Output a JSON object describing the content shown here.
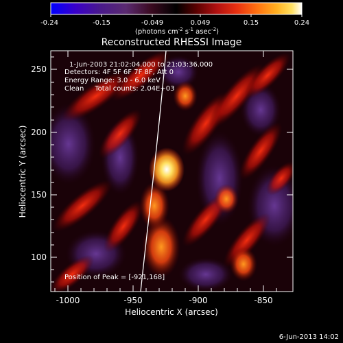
{
  "colorbar": {
    "tick_labels": [
      "-0.24",
      "-0.15",
      "-0.049",
      "0.049",
      "0.15",
      "0.24"
    ],
    "units_main": "(photons cm",
    "units_exp1": "-2",
    "units_mid1": " s",
    "units_exp2": "-1",
    "units_mid2": " asec",
    "units_exp3": "-2",
    "units_close": ")",
    "colors": [
      "#0000ff",
      "#3a00c8",
      "#4a1a8a",
      "#5a2a70",
      "#3a0a20",
      "#000000",
      "#5a0000",
      "#b01010",
      "#e83010",
      "#ff7010",
      "#ffb020",
      "#ffe060",
      "#ffffff"
    ]
  },
  "title": "Reconstructed RHESSI Image",
  "annotations": {
    "time_range": "1-Jun-2003 21:02:04.000 to 21:03:36.000",
    "detectors": "Detectors: 4F 5F 6F 7F 8F, Att 0",
    "energy": "Energy Range: 3.0 - 6.0 keV",
    "clean": "Clean     Total counts: 2.04E+03",
    "peak": "Position of Peak = [-921,168]"
  },
  "axes": {
    "xlabel": "Heliocentric X (arcsec)",
    "ylabel": "Heliocentric Y (arcsec)",
    "x_ticks": [
      "-1000",
      "-950",
      "-900",
      "-850"
    ],
    "y_ticks": [
      "100",
      "150",
      "200",
      "250"
    ],
    "xlim": [
      -1012,
      -826
    ],
    "ylim": [
      72,
      265
    ]
  },
  "footer": {
    "date": "6-Jun-2013 14:02"
  },
  "image": {
    "peak": {
      "x": -921,
      "y": 168
    },
    "limb_color": "#ffffff"
  }
}
